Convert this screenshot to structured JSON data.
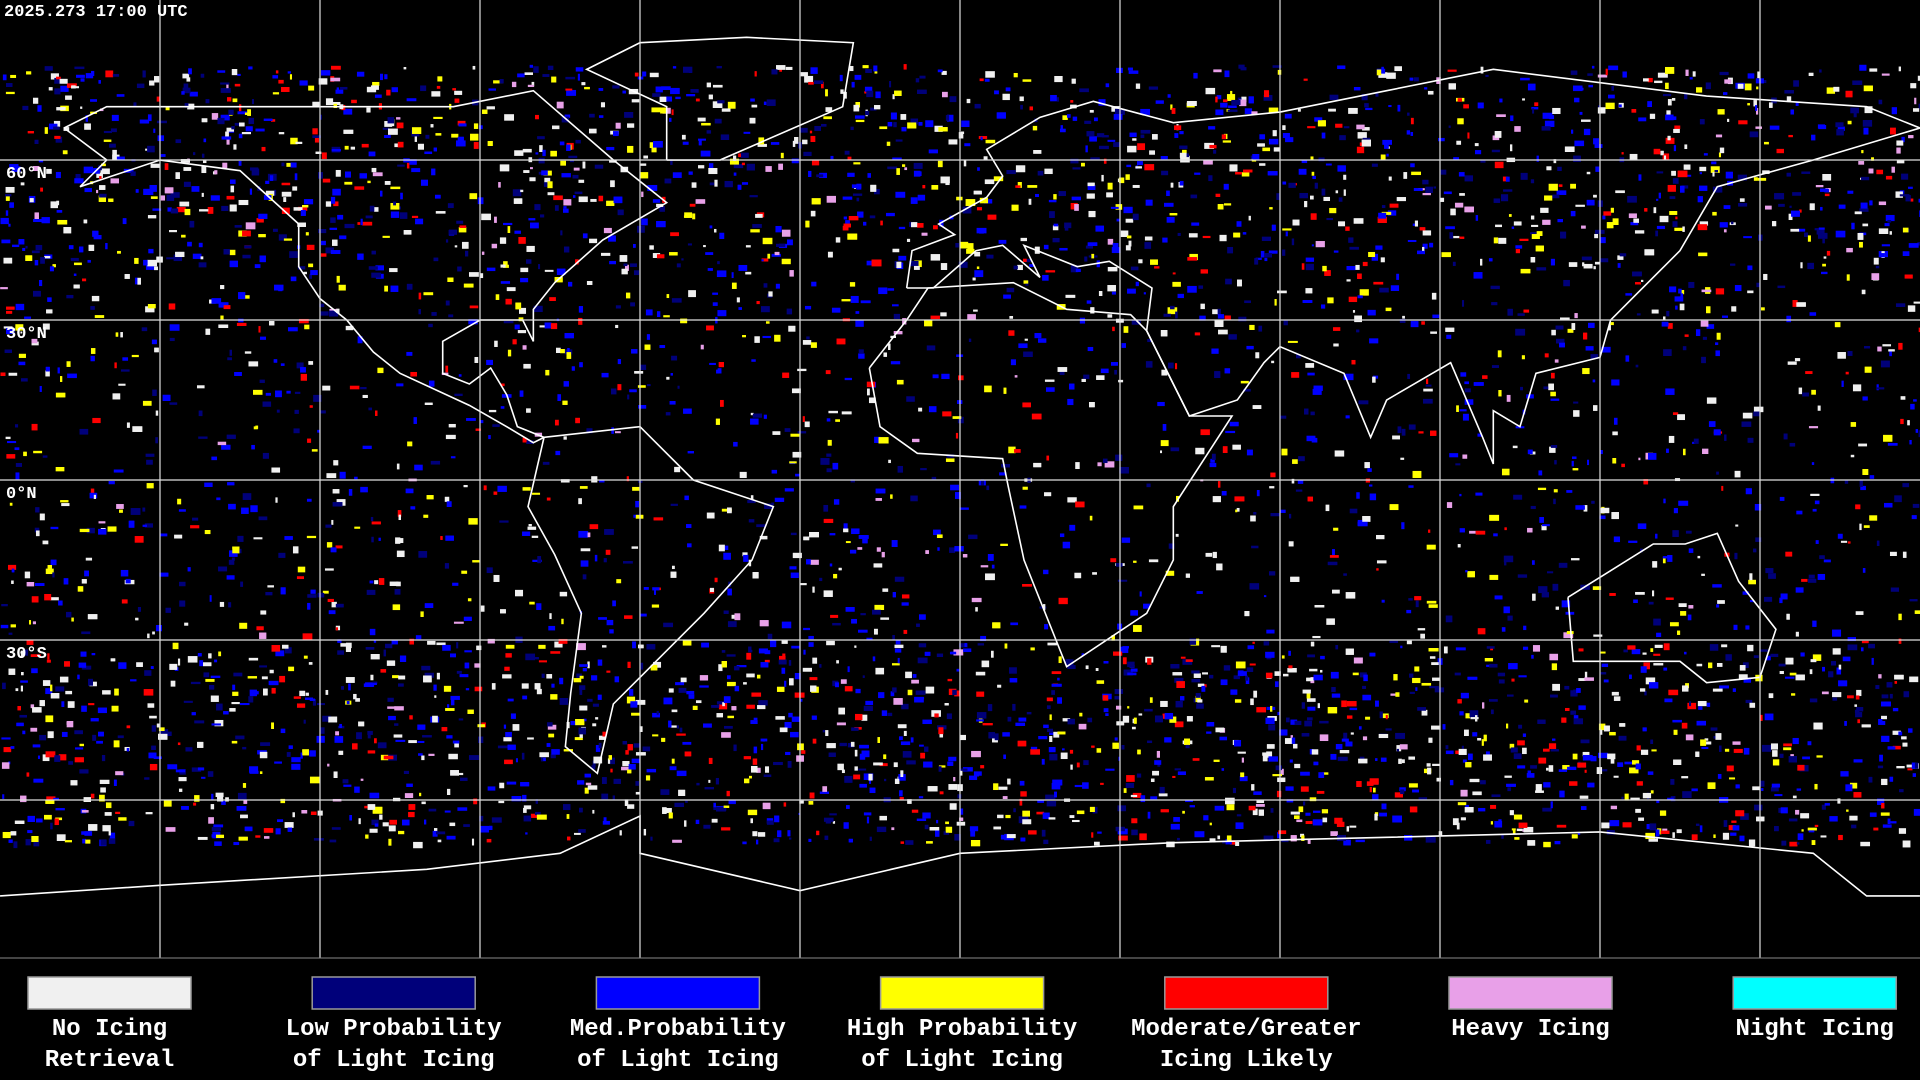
{
  "header": {
    "timestamp": "2025.273 17:00 UTC"
  },
  "map": {
    "lat_labels": [
      "60°N",
      "30°N",
      "0°N",
      "30°S"
    ]
  },
  "legend": {
    "items": [
      {
        "color": "#f0f0f0",
        "lines": [
          "No Icing",
          "Retrieval"
        ]
      },
      {
        "color": "#00007a",
        "lines": [
          "Low Probability",
          "of Light Icing"
        ]
      },
      {
        "color": "#0000ff",
        "lines": [
          "Med.Probability",
          "of Light Icing"
        ]
      },
      {
        "color": "#ffff00",
        "lines": [
          "High Probability",
          "of Light Icing"
        ]
      },
      {
        "color": "#ff0000",
        "lines": [
          "Moderate/Greater",
          "Icing Likely"
        ]
      },
      {
        "color": "#e8a0e8",
        "lines": [
          "Heavy Icing"
        ]
      },
      {
        "color": "#00ffff",
        "lines": [
          "Night Icing"
        ]
      }
    ]
  }
}
